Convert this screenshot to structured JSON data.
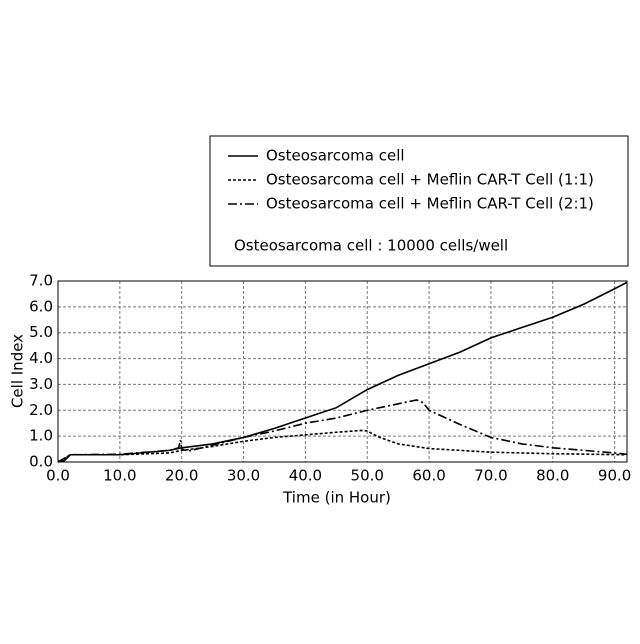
{
  "chart_data": {
    "type": "line",
    "xlabel": "Time (in Hour)",
    "ylabel": "Cell Index",
    "annotation": "Osteosarcoma cell : 10000 cells/well",
    "xlim": [
      0,
      92
    ],
    "ylim": [
      0,
      7
    ],
    "grid": true,
    "legend": "top-right",
    "xticks": [
      {
        "value": 0,
        "label": "0.0"
      },
      {
        "value": 10,
        "label": "10.0"
      },
      {
        "value": 20,
        "label": "20.0"
      },
      {
        "value": 30,
        "label": "30.0"
      },
      {
        "value": 40,
        "label": "40.0"
      },
      {
        "value": 50,
        "label": "50.0"
      },
      {
        "value": 60,
        "label": "60.0"
      },
      {
        "value": 70,
        "label": "70.0"
      },
      {
        "value": 80,
        "label": "80.0"
      },
      {
        "value": 90,
        "label": "90.0"
      }
    ],
    "yticks": [
      {
        "value": 0,
        "label": "0.0"
      },
      {
        "value": 1,
        "label": "1.0"
      },
      {
        "value": 2,
        "label": "2.0"
      },
      {
        "value": 3,
        "label": "3.0"
      },
      {
        "value": 4,
        "label": "4.0"
      },
      {
        "value": 5,
        "label": "5.0"
      },
      {
        "value": 6,
        "label": "6.0"
      },
      {
        "value": 7,
        "label": "7.0"
      }
    ],
    "series": [
      {
        "name": "Osteosarcoma cell",
        "color": "#000000",
        "dash": "solid",
        "x": [
          0,
          1,
          2,
          10,
          18,
          20,
          25,
          30,
          35,
          40,
          45,
          50,
          55,
          60,
          65,
          70,
          75,
          80,
          85,
          90,
          92
        ],
        "values": [
          0,
          0.05,
          0.28,
          0.28,
          0.45,
          0.55,
          0.7,
          0.95,
          1.3,
          1.7,
          2.1,
          2.8,
          3.35,
          3.8,
          4.25,
          4.8,
          5.2,
          5.6,
          6.1,
          6.7,
          6.95
        ]
      },
      {
        "name": "Osteosarcoma cell + Meflin CAR-T Cell (1:1)",
        "color": "#000000",
        "dash": "dashed",
        "x": [
          0,
          2,
          10,
          18,
          20,
          25,
          30,
          35,
          40,
          45,
          49,
          50,
          52,
          55,
          60,
          70,
          80,
          92
        ],
        "values": [
          0,
          0.28,
          0.28,
          0.35,
          0.45,
          0.6,
          0.8,
          0.95,
          1.05,
          1.15,
          1.22,
          1.2,
          0.95,
          0.7,
          0.52,
          0.38,
          0.32,
          0.28
        ]
      },
      {
        "name": "Osteosarcoma cell + Meflin CAR-T Cell (2:1)",
        "color": "#000000",
        "dash": "dashdot",
        "x": [
          0,
          2,
          10,
          18,
          19.5,
          19.8,
          20,
          21,
          25,
          30,
          35,
          40,
          45,
          50,
          55,
          58,
          59,
          60,
          65,
          70,
          75,
          80,
          85,
          90,
          92
        ],
        "values": [
          0,
          0.28,
          0.3,
          0.45,
          0.55,
          0.85,
          0.5,
          0.42,
          0.65,
          0.95,
          1.2,
          1.5,
          1.7,
          2.0,
          2.25,
          2.4,
          2.3,
          2.0,
          1.45,
          0.95,
          0.7,
          0.55,
          0.45,
          0.35,
          0.3
        ]
      }
    ]
  }
}
